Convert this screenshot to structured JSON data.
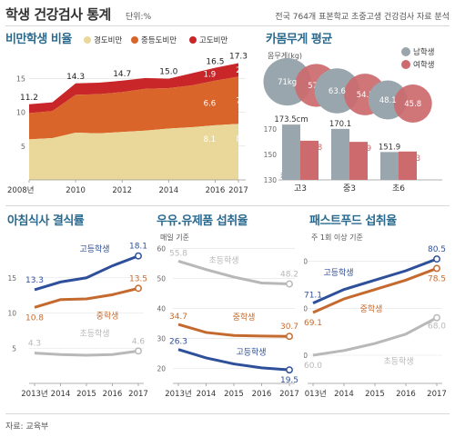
{
  "header": {
    "title": "학생 건강검사 통계",
    "unit": "단위:%",
    "source_note": "전국 764개 표본학교 초중고생 건강검사 자료 분석"
  },
  "footer": {
    "source": "자료: 교육부"
  },
  "colors": {
    "light_obese": "#e9d89a",
    "medium_obese": "#d9652b",
    "high_obese": "#c9262a",
    "boys": "#9aa6ad",
    "girls": "#cc6a6e",
    "high_line": "#2e4f9a",
    "middle_line": "#c56a2e",
    "elementary_line": "#b8b8b8",
    "title_blue": "#2a6a8f"
  },
  "chart_data": [
    {
      "id": "obesity",
      "type": "area",
      "title": "비만학생 비율",
      "x": [
        2008,
        2009,
        2010,
        2011,
        2012,
        2013,
        2014,
        2015,
        2016,
        2017
      ],
      "x_tick_labels": [
        "2008년",
        "2010",
        "2012",
        "2014",
        "2016",
        "2017"
      ],
      "ylim": [
        0,
        17.5
      ],
      "y_ticks": [
        5,
        10,
        15
      ],
      "series": [
        {
          "name": "경도비만",
          "values": [
            6.0,
            6.2,
            7.0,
            6.9,
            7.1,
            7.3,
            7.6,
            7.8,
            8.1,
            8.3
          ]
        },
        {
          "name": "중등도비만",
          "values": [
            3.9,
            4.0,
            5.6,
            5.8,
            5.9,
            6.2,
            6.0,
            6.2,
            6.6,
            7.0
          ]
        },
        {
          "name": "고도비만",
          "values": [
            1.3,
            1.3,
            1.7,
            1.7,
            1.7,
            1.6,
            1.4,
            1.8,
            1.9,
            2.0
          ]
        }
      ],
      "totals": [
        11.2,
        11.5,
        14.3,
        14.4,
        14.7,
        15.1,
        15.0,
        15.8,
        16.5,
        17.3
      ],
      "labels": {
        "totals": [
          "11.2",
          "14.3",
          "14.7",
          "15.0",
          "16.5",
          "17.3"
        ],
        "light_2016": "8.1",
        "light_2017": "8.3",
        "medium_2016": "6.6",
        "medium_2017": "7.0",
        "high_2016": "1.9",
        "high_2017": "2.0"
      },
      "legend": [
        "경도비만",
        "중등도비만",
        "고도비만"
      ]
    },
    {
      "id": "weight",
      "type": "bar",
      "title": "카몸무게 평균",
      "weight_axis_label": "몸무게(kg)",
      "height_axis_label": "키(cm)",
      "legend": [
        "남학생",
        "여학생"
      ],
      "categories": [
        "고3",
        "중3",
        "초6"
      ],
      "series": [
        {
          "name": "남학생",
          "weights": [
            71,
            63.6,
            48.1
          ],
          "heights": [
            173.5,
            170.1,
            151.9
          ]
        },
        {
          "name": "여학생",
          "weights": [
            57.8,
            54.5,
            45.8
          ],
          "heights": [
            160.8,
            159.9,
            152.3
          ]
        }
      ],
      "weight_labels": {
        "boys": [
          "71kg",
          "63.6",
          "48.1"
        ],
        "girls": [
          "57.8",
          "54.5",
          "45.8"
        ]
      },
      "height_labels": {
        "boys": [
          "173.5cm",
          "170.1",
          "151.9"
        ],
        "girls": [
          "160.8",
          "159.9",
          "152.3"
        ]
      },
      "ylim": [
        130,
        180
      ],
      "y_ticks": [
        130,
        150,
        170
      ]
    },
    {
      "id": "breakfast",
      "type": "line",
      "title": "아침식사 결식률",
      "x": [
        "2013년",
        "2014",
        "2015",
        "2016",
        "2017"
      ],
      "ylim": [
        0,
        20
      ],
      "y_ticks": [
        5,
        10,
        15
      ],
      "series": [
        {
          "name": "고등학생",
          "values": [
            13.3,
            14.4,
            15.0,
            16.7,
            18.1
          ],
          "start_label": "13.3",
          "end_label": "18.1"
        },
        {
          "name": "중학생",
          "values": [
            10.8,
            11.9,
            12.0,
            12.6,
            13.5
          ],
          "start_label": "10.8",
          "end_label": "13.5"
        },
        {
          "name": "초등학생",
          "values": [
            4.3,
            4.1,
            4.0,
            4.1,
            4.6
          ],
          "start_label": "4.3",
          "end_label": "4.6"
        }
      ]
    },
    {
      "id": "dairy",
      "type": "line",
      "title": "우유.유제품 섭취율",
      "subtitle": "매일 기준",
      "x": [
        "2013년",
        "2014",
        "2015",
        "2016",
        "2017"
      ],
      "ylim": [
        15,
        62
      ],
      "y_ticks": [
        20,
        30,
        40,
        50,
        60
      ],
      "series": [
        {
          "name": "초등학생",
          "values": [
            55.8,
            53.0,
            50.5,
            48.5,
            48.2
          ],
          "start_label": "55.8",
          "end_label": "48.2"
        },
        {
          "name": "중학생",
          "values": [
            34.7,
            32.0,
            31.0,
            30.8,
            30.7
          ],
          "start_label": "34.7",
          "end_label": "30.7"
        },
        {
          "name": "고등학생",
          "values": [
            26.3,
            23.5,
            21.5,
            20.2,
            19.5
          ],
          "start_label": "26.3",
          "end_label": "19.5"
        }
      ]
    },
    {
      "id": "fastfood",
      "type": "line",
      "title": "패스트푸드 섭취율",
      "subtitle": "주 1회 이상 기준",
      "x": [
        "2013년",
        "2014",
        "2015",
        "2016",
        "2017"
      ],
      "ylim": [
        54,
        84
      ],
      "y_ticks": [
        60,
        70,
        80
      ],
      "series": [
        {
          "name": "고등학생",
          "values": [
            71.1,
            74.0,
            76.0,
            78.0,
            80.5
          ],
          "start_label": "71.1",
          "end_label": "80.5"
        },
        {
          "name": "중학생",
          "values": [
            69.1,
            72.0,
            74.0,
            76.0,
            78.5
          ],
          "start_label": "69.1",
          "end_label": "78.5"
        },
        {
          "name": "초등학생",
          "values": [
            60.0,
            61.0,
            62.5,
            64.5,
            68.0
          ],
          "start_label": "60.0",
          "end_label": "68.0"
        }
      ]
    }
  ]
}
